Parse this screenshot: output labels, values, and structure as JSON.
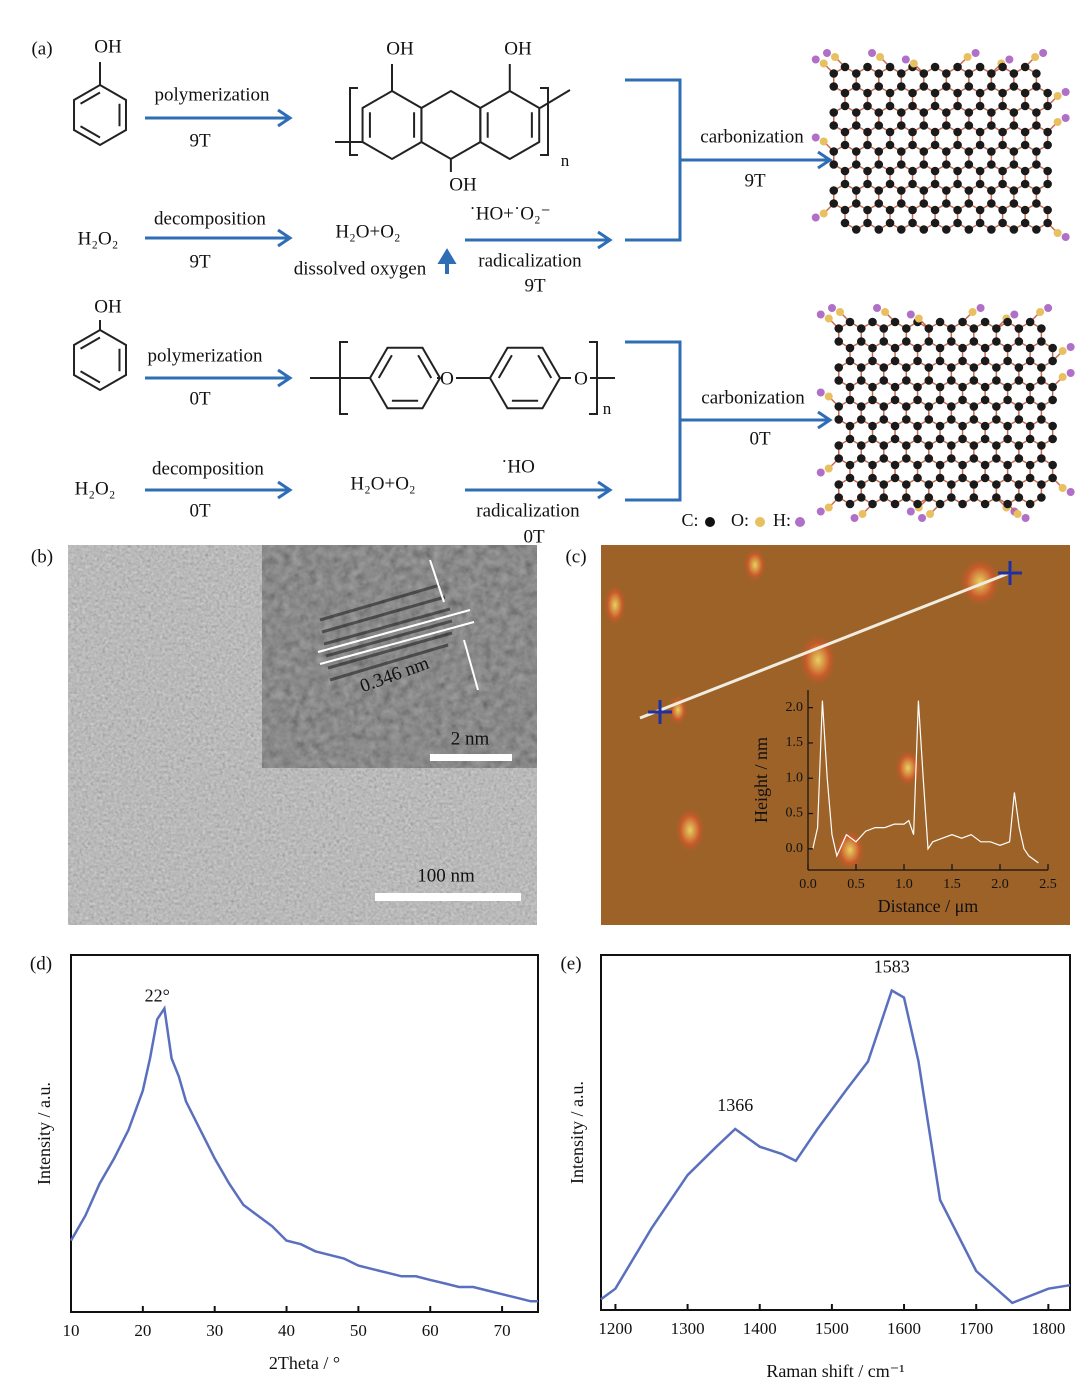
{
  "scheme": {
    "label": "(a)",
    "route_9T": {
      "phenol_oh": "OH",
      "polymerization": "polymerization",
      "polymer_field": "9T",
      "polymer_oh": [
        "OH",
        "OH",
        "OH"
      ],
      "polymer_n": "n",
      "h2o2": "H₂O₂",
      "decomposition": "decomposition",
      "decomposition_field": "9T",
      "products": "H₂O+O₂",
      "dissolved_oxygen": "dissolved oxygen",
      "radicals": "˙HO+˙O₂⁻",
      "radicalization": "radicalization",
      "radicalization_field": "9T",
      "carbonization": "carbonization",
      "carbonization_field": "9T"
    },
    "route_0T": {
      "phenol_oh": "OH",
      "polymerization": "polymerization",
      "polymer_field": "0T",
      "polymer_o": [
        "O",
        "O"
      ],
      "polymer_n": "n",
      "h2o2": "H₂O₂",
      "decomposition": "decomposition",
      "decomposition_field": "0T",
      "products": "H₂O+O₂",
      "radicals": "˙HO",
      "radicalization": "radicalization",
      "radicalization_field": "0T",
      "carbonization": "carbonization",
      "carbonization_field": "0T"
    },
    "legend": [
      "C:",
      "O:",
      "H:"
    ]
  },
  "tem": {
    "label": "(b)",
    "lattice_spacing": "0.346 nm",
    "inset_scale": "2 nm",
    "scale": "100 nm"
  },
  "afm": {
    "label": "(c)"
  },
  "chart_data": [
    {
      "type": "line",
      "xlabel": "Distance / μm",
      "ylabel": "Height / nm",
      "color": "#ffffff",
      "x": [
        0.05,
        0.1,
        0.15,
        0.2,
        0.25,
        0.3,
        0.4,
        0.5,
        0.6,
        0.7,
        0.8,
        0.9,
        1.0,
        1.05,
        1.1,
        1.15,
        1.2,
        1.25,
        1.3,
        1.4,
        1.5,
        1.6,
        1.7,
        1.8,
        1.9,
        2.0,
        2.1,
        2.15,
        2.2,
        2.25,
        2.3,
        2.4
      ],
      "values": [
        0.0,
        0.3,
        2.1,
        1.0,
        0.2,
        -0.1,
        0.2,
        0.1,
        0.25,
        0.3,
        0.3,
        0.35,
        0.35,
        0.4,
        0.2,
        2.1,
        1.0,
        0.0,
        0.1,
        0.15,
        0.2,
        0.15,
        0.2,
        0.1,
        0.1,
        0.05,
        0.1,
        0.8,
        0.3,
        0.0,
        -0.1,
        -0.2
      ],
      "xlim": [
        0,
        2.5
      ],
      "ylim": [
        -0.3,
        2.25
      ],
      "xticks": [
        {
          "value": 0,
          "label": "0.0"
        },
        0.5,
        {
          "value": 1,
          "label": "1.0"
        },
        1.5,
        {
          "value": 2,
          "label": "2.0"
        },
        2.5
      ],
      "yticks": [
        {
          "value": 0,
          "label": "0.0"
        },
        0.5,
        {
          "value": 1,
          "label": "1.0"
        },
        1.5,
        {
          "value": 2,
          "label": "2.0"
        }
      ]
    },
    {
      "type": "line",
      "label": "(d)",
      "xlabel": "2Theta / °",
      "ylabel": "Intensity / a.u.",
      "color": "#5b6fbf",
      "x": [
        10,
        12,
        14,
        16,
        18,
        20,
        21,
        22,
        23,
        24,
        25,
        26,
        28,
        30,
        32,
        34,
        36,
        38,
        40,
        42,
        44,
        46,
        48,
        50,
        52,
        54,
        56,
        58,
        60,
        62,
        64,
        66,
        68,
        70,
        72,
        74,
        75
      ],
      "values": [
        20,
        27,
        36,
        43,
        51,
        62,
        71,
        82,
        85,
        71,
        66,
        59,
        51,
        43,
        36,
        30,
        27,
        24,
        20,
        19,
        17,
        16,
        15,
        13,
        12,
        11,
        10,
        10,
        9,
        8,
        7,
        7,
        6,
        5,
        4,
        3,
        3
      ],
      "xlim": [
        10,
        75
      ],
      "ylim": [
        0,
        100
      ],
      "xticks": [
        10,
        20,
        30,
        40,
        50,
        60,
        70
      ],
      "annotations": [
        {
          "value": 22,
          "label": "22°"
        }
      ]
    },
    {
      "type": "line",
      "label": "(e)",
      "xlabel": "Raman shift / cm⁻¹",
      "ylabel": "Intensity / a.u.",
      "color": "#5b6fbf",
      "x": [
        1180,
        1200,
        1250,
        1300,
        1340,
        1366,
        1400,
        1430,
        1450,
        1480,
        1520,
        1550,
        1583,
        1600,
        1620,
        1650,
        1700,
        1750,
        1800,
        1830
      ],
      "values": [
        3,
        6,
        23,
        38,
        46,
        51,
        46,
        44,
        42,
        51,
        62,
        70,
        90,
        88,
        70,
        31,
        11,
        2,
        6,
        7
      ],
      "xlim": [
        1180,
        1830
      ],
      "ylim": [
        0,
        100
      ],
      "xticks": [
        1200,
        1300,
        1400,
        1500,
        1600,
        1700,
        1800
      ],
      "annotations": [
        1366,
        1583
      ]
    }
  ]
}
